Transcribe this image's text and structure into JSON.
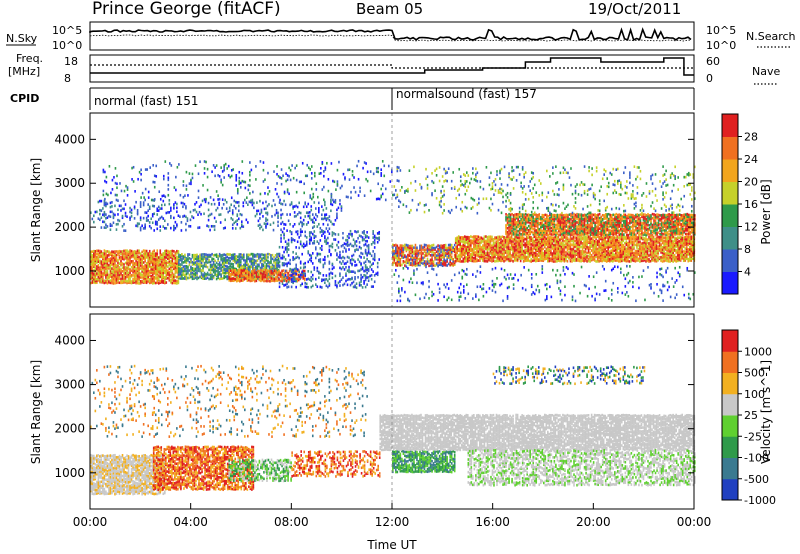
{
  "header": {
    "station": "Prince George (fitACF)",
    "beam": "Beam 05",
    "date": "19/Oct/2011"
  },
  "noise_panel": {
    "left_label": "N.Sky",
    "right_label": "N.Search",
    "left_ticks": [
      "10^5",
      "10^0"
    ],
    "right_ticks": [
      "10^5",
      "10^0"
    ]
  },
  "freq_panel": {
    "left_label_1": "Freq.",
    "left_label_2": "[MHz]",
    "left_ticks": [
      "18",
      "8"
    ],
    "right_label": "Nave",
    "right_ticks": [
      "60",
      "0"
    ]
  },
  "cpid": {
    "label": "CPID",
    "segments": [
      {
        "name": "normal (fast) 151",
        "start_hour": 0
      },
      {
        "name": "normalsound (fast) 157",
        "start_hour": 12
      }
    ]
  },
  "chart_data": [
    {
      "type": "heatmap",
      "title": "",
      "xlabel": "",
      "ylabel": "Slant Range [km]",
      "xlim": [
        0,
        24
      ],
      "ylim": [
        180,
        4600
      ],
      "y_ticks": [
        "1000",
        "2000",
        "3000",
        "4000"
      ],
      "colorbar": {
        "label": "Power [dB]",
        "ticks": [
          "4",
          "8",
          "12",
          "16",
          "20",
          "24",
          "28"
        ],
        "colors": [
          "#1a1aff",
          "#3a5fc8",
          "#3f8f88",
          "#2f9a4a",
          "#c6d12a",
          "#f2a51d",
          "#f07020",
          "#e02020"
        ]
      }
    },
    {
      "type": "heatmap",
      "title": "",
      "xlabel": "Time UT",
      "ylabel": "Slant Range [km]",
      "xlim": [
        0,
        24
      ],
      "ylim": [
        180,
        4600
      ],
      "x_ticks": [
        "00:00",
        "04:00",
        "08:00",
        "12:00",
        "16:00",
        "20:00",
        "00:00"
      ],
      "y_ticks": [
        "1000",
        "2000",
        "3000",
        "4000"
      ],
      "colorbar": {
        "label": "Velocity [m s^-1]",
        "ticks": [
          "1000",
          "500",
          "100",
          "25",
          "-25",
          "-100",
          "-500",
          "-1000"
        ],
        "colors": [
          "#2040c0",
          "#3a7a90",
          "#2f9a4a",
          "#5fd030",
          "#c8c8c8",
          "#f2b020",
          "#f07020",
          "#e02020"
        ]
      }
    }
  ]
}
